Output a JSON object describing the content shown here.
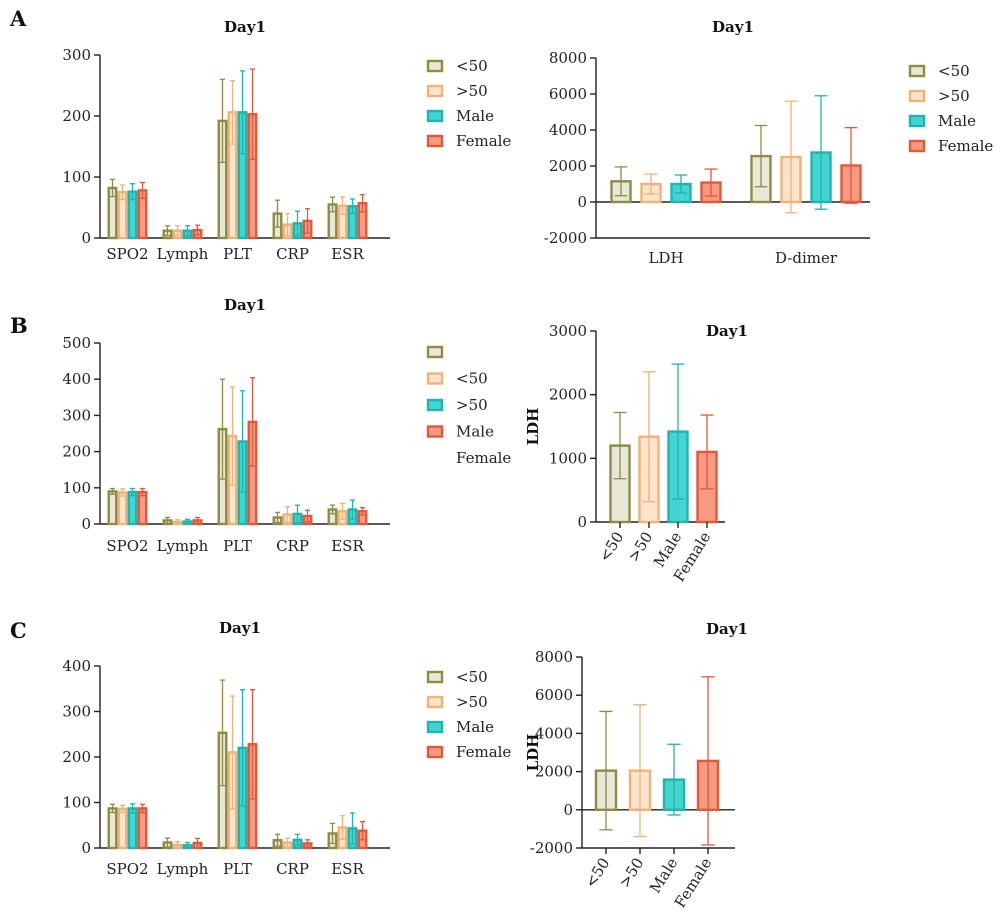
{
  "panels": [
    {
      "letter": "A"
    },
    {
      "letter": "B"
    },
    {
      "letter": "C"
    }
  ],
  "colors": {
    "lt50": {
      "stroke": "#8c8c45",
      "fill": "#e9e8d8"
    },
    "gt50": {
      "stroke": "#f2b27a",
      "fill": "#fbe3cc"
    },
    "male": {
      "stroke": "#1fb4b0",
      "fill": "#43d6d0"
    },
    "female": {
      "stroke": "#e4573a",
      "fill": "#f69a82"
    }
  },
  "chart_data": [
    {
      "id": "A-left",
      "type": "bar",
      "title": "Day1",
      "ylim": [
        0,
        300
      ],
      "yticks": [
        0,
        100,
        200,
        300
      ],
      "categories": [
        "SPO2",
        "Lymph",
        "PLT",
        "CRP",
        "ESR"
      ],
      "legend": [
        "<50",
        ">50",
        "Male",
        "Female"
      ],
      "legend_position": "right",
      "series": [
        {
          "name": "<50",
          "values": [
            82,
            12,
            192,
            40,
            55
          ],
          "errors": [
            14,
            8,
            68,
            22,
            12
          ]
        },
        {
          "name": ">50",
          "values": [
            75,
            12,
            206,
            22,
            53
          ],
          "errors": [
            12,
            8,
            52,
            18,
            14
          ]
        },
        {
          "name": "Male",
          "values": [
            76,
            12,
            206,
            24,
            52
          ],
          "errors": [
            13,
            8,
            68,
            20,
            12
          ]
        },
        {
          "name": "Female",
          "values": [
            78,
            13,
            203,
            28,
            57
          ],
          "errors": [
            13,
            8,
            74,
            20,
            14
          ]
        }
      ]
    },
    {
      "id": "A-right",
      "type": "bar",
      "title": "Day1",
      "ylim": [
        -2000,
        8000
      ],
      "yticks": [
        -2000,
        0,
        2000,
        4000,
        6000,
        8000
      ],
      "categories": [
        "LDH",
        "D-dimer"
      ],
      "legend": [
        "<50",
        ">50",
        "Male",
        "Female"
      ],
      "legend_position": "right",
      "series": [
        {
          "name": "<50",
          "values": [
            1150,
            2550
          ],
          "errors": [
            800,
            1700
          ]
        },
        {
          "name": ">50",
          "values": [
            1000,
            2500
          ],
          "errors": [
            550,
            3100
          ]
        },
        {
          "name": "Male",
          "values": [
            1000,
            2750
          ],
          "errors": [
            500,
            3150
          ]
        },
        {
          "name": "Female",
          "values": [
            1080,
            2030
          ],
          "errors": [
            750,
            2100
          ]
        }
      ]
    },
    {
      "id": "B-left",
      "type": "bar",
      "title": "Day1",
      "ylim": [
        0,
        500
      ],
      "yticks": [
        0,
        100,
        200,
        300,
        400,
        500
      ],
      "categories": [
        "SPO2",
        "Lymph",
        "PLT",
        "CRP",
        "ESR"
      ],
      "legend": [
        "",
        "<50",
        ">50",
        "Male",
        "Female"
      ],
      "legend_position": "right",
      "series": [
        {
          "name": "<50",
          "values": [
            90,
            10,
            262,
            18,
            40
          ],
          "errors": [
            8,
            8,
            138,
            14,
            12
          ]
        },
        {
          "name": ">50",
          "values": [
            87,
            6,
            243,
            26,
            35
          ],
          "errors": [
            10,
            6,
            135,
            22,
            22
          ]
        },
        {
          "name": "Male",
          "values": [
            88,
            7,
            228,
            28,
            40
          ],
          "errors": [
            10,
            6,
            140,
            24,
            26
          ]
        },
        {
          "name": "Female",
          "values": [
            88,
            10,
            282,
            22,
            35
          ],
          "errors": [
            10,
            8,
            122,
            16,
            10
          ]
        }
      ]
    },
    {
      "id": "B-right",
      "type": "bar",
      "title": "Day1",
      "ylabel": "LDH",
      "ylim": [
        0,
        3000
      ],
      "yticks": [
        0,
        1000,
        2000,
        3000
      ],
      "categories": [
        "<50",
        ">50",
        "Male",
        "Female"
      ],
      "values": [
        1200,
        1340,
        1420,
        1100
      ],
      "errors": [
        520,
        1020,
        1060,
        580
      ]
    },
    {
      "id": "C-left",
      "type": "bar",
      "title": "Day1",
      "ylim": [
        0,
        400
      ],
      "yticks": [
        0,
        100,
        200,
        300,
        400
      ],
      "categories": [
        "SPO2",
        "Lymph",
        "PLT",
        "CRP",
        "ESR"
      ],
      "legend": [
        "<50",
        ">50",
        "Male",
        "Female"
      ],
      "legend_position": "right",
      "series": [
        {
          "name": "<50",
          "values": [
            87,
            12,
            253,
            17,
            32
          ],
          "errors": [
            9,
            10,
            116,
            13,
            22
          ]
        },
        {
          "name": ">50",
          "values": [
            86,
            7,
            210,
            12,
            45
          ],
          "errors": [
            8,
            7,
            124,
            10,
            26
          ]
        },
        {
          "name": "Male",
          "values": [
            87,
            6,
            220,
            18,
            43
          ],
          "errors": [
            10,
            6,
            128,
            12,
            34
          ]
        },
        {
          "name": "Female",
          "values": [
            87,
            11,
            228,
            10,
            38
          ],
          "errors": [
            9,
            10,
            120,
            8,
            20
          ]
        }
      ]
    },
    {
      "id": "C-right",
      "type": "bar",
      "title": "Day1",
      "ylabel": "LDH",
      "ylim": [
        -2000,
        8000
      ],
      "yticks": [
        -2000,
        0,
        2000,
        4000,
        6000,
        8000
      ],
      "categories": [
        "<50",
        ">50",
        "Male",
        "Female"
      ],
      "values": [
        2050,
        2050,
        1580,
        2560
      ],
      "errors": [
        3100,
        3450,
        1850,
        4400
      ]
    }
  ]
}
